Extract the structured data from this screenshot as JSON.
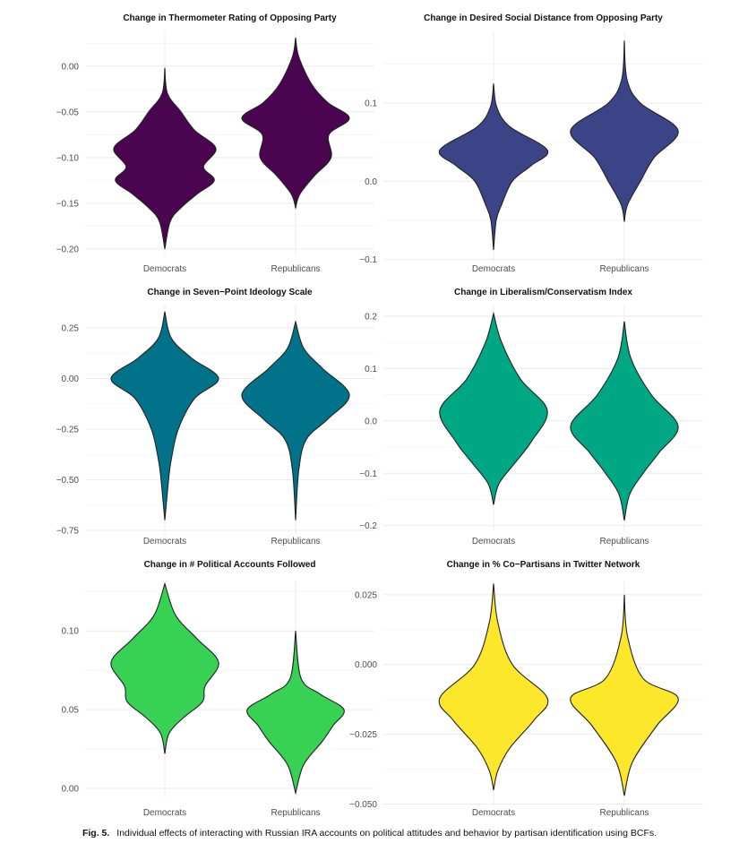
{
  "chart_data": [
    {
      "type": "violin",
      "title": "Change in Thermometer Rating of Opposing Party",
      "categories": [
        "Democrats",
        "Republicans"
      ],
      "yticks": [
        "0.00",
        "-0.05",
        "-0.10",
        "-0.15",
        "-0.20"
      ],
      "ytick_values": [
        0,
        -0.05,
        -0.1,
        -0.15,
        -0.2
      ],
      "ylim": [
        -0.207,
        0.038
      ],
      "color": "#4a0450",
      "series": [
        {
          "name": "Democrats",
          "density": [
            [
              -0.002,
              0
            ],
            [
              -0.03,
              0.05
            ],
            [
              -0.05,
              0.3
            ],
            [
              -0.07,
              0.55
            ],
            [
              -0.09,
              0.95
            ],
            [
              -0.11,
              0.72
            ],
            [
              -0.125,
              0.92
            ],
            [
              -0.14,
              0.6
            ],
            [
              -0.155,
              0.3
            ],
            [
              -0.17,
              0.1
            ],
            [
              -0.2,
              0
            ]
          ]
        },
        {
          "name": "Republicans",
          "density": [
            [
              0.031,
              0
            ],
            [
              0.01,
              0.06
            ],
            [
              -0.02,
              0.3
            ],
            [
              -0.04,
              0.6
            ],
            [
              -0.057,
              1.0
            ],
            [
              -0.075,
              0.62
            ],
            [
              -0.1,
              0.66
            ],
            [
              -0.12,
              0.35
            ],
            [
              -0.14,
              0.08
            ],
            [
              -0.155,
              0
            ]
          ]
        }
      ]
    },
    {
      "type": "violin",
      "title": "Change in Desired Social Distance from Opposing Party",
      "categories": [
        "Democrats",
        "Republicans"
      ],
      "yticks": [
        "0.1",
        "0.0",
        "-0.1"
      ],
      "ytick_values": [
        0.1,
        0,
        -0.1
      ],
      "ylim": [
        -0.103,
        0.192
      ],
      "color": "#3c4488",
      "series": [
        {
          "name": "Democrats",
          "density": [
            [
              0.125,
              0
            ],
            [
              0.095,
              0.06
            ],
            [
              0.07,
              0.3
            ],
            [
              0.04,
              1.0
            ],
            [
              0.02,
              0.7
            ],
            [
              0.0,
              0.35
            ],
            [
              -0.03,
              0.15
            ],
            [
              -0.05,
              0.05
            ],
            [
              -0.088,
              0
            ]
          ]
        },
        {
          "name": "Republicans",
          "density": [
            [
              0.18,
              0
            ],
            [
              0.13,
              0.05
            ],
            [
              0.1,
              0.3
            ],
            [
              0.065,
              1.0
            ],
            [
              0.03,
              0.55
            ],
            [
              0.0,
              0.3
            ],
            [
              -0.03,
              0.06
            ],
            [
              -0.052,
              0
            ]
          ]
        }
      ]
    },
    {
      "type": "violin",
      "title": "Change in Seven−Point Ideology Scale",
      "categories": [
        "Democrats",
        "Republicans"
      ],
      "yticks": [
        "0.25",
        "0.00",
        "-0.25",
        "-0.50",
        "-0.75"
      ],
      "ytick_values": [
        0.25,
        0,
        -0.25,
        -0.5,
        -0.75
      ],
      "ylim": [
        -0.772,
        0.365
      ],
      "color": "#00738a",
      "series": [
        {
          "name": "Democrats",
          "density": [
            [
              0.33,
              0
            ],
            [
              0.2,
              0.12
            ],
            [
              0.1,
              0.5
            ],
            [
              0.0,
              1.0
            ],
            [
              -0.1,
              0.55
            ],
            [
              -0.25,
              0.25
            ],
            [
              -0.4,
              0.12
            ],
            [
              -0.5,
              0.07
            ],
            [
              -0.7,
              0
            ]
          ]
        },
        {
          "name": "Republicans",
          "density": [
            [
              0.28,
              0
            ],
            [
              0.15,
              0.15
            ],
            [
              0.05,
              0.5
            ],
            [
              -0.08,
              1.0
            ],
            [
              -0.2,
              0.6
            ],
            [
              -0.3,
              0.2
            ],
            [
              -0.45,
              0.06
            ],
            [
              -0.7,
              0
            ]
          ]
        }
      ]
    },
    {
      "type": "violin",
      "title": "Change in Liberalism/Conservatism Index",
      "categories": [
        "Democrats",
        "Republicans"
      ],
      "yticks": [
        "0.2",
        "0.1",
        "0.0",
        "-0.1",
        "-0.2"
      ],
      "ytick_values": [
        0.2,
        0.1,
        0,
        -0.1,
        -0.2
      ],
      "ylim": [
        -0.209,
        0.222
      ],
      "color": "#00a784",
      "series": [
        {
          "name": "Democrats",
          "density": [
            [
              0.205,
              0
            ],
            [
              0.15,
              0.15
            ],
            [
              0.08,
              0.5
            ],
            [
              0.02,
              1.0
            ],
            [
              -0.04,
              0.7
            ],
            [
              -0.08,
              0.4
            ],
            [
              -0.12,
              0.1
            ],
            [
              -0.16,
              0
            ]
          ]
        },
        {
          "name": "Republicans",
          "density": [
            [
              0.19,
              0
            ],
            [
              0.12,
              0.12
            ],
            [
              0.05,
              0.5
            ],
            [
              -0.01,
              1.0
            ],
            [
              -0.06,
              0.65
            ],
            [
              -0.1,
              0.35
            ],
            [
              -0.14,
              0.1
            ],
            [
              -0.19,
              0
            ]
          ]
        }
      ]
    },
    {
      "type": "violin",
      "title": "Change in # Political Accounts Followed",
      "categories": [
        "Democrats",
        "Republicans"
      ],
      "yticks": [
        "0.10",
        "0.05",
        "0.00"
      ],
      "ytick_values": [
        0.1,
        0.05,
        0
      ],
      "ylim": [
        -0.0057,
        0.132
      ],
      "color": "#37d154",
      "series": [
        {
          "name": "Democrats",
          "density": [
            [
              0.13,
              0
            ],
            [
              0.11,
              0.2
            ],
            [
              0.095,
              0.6
            ],
            [
              0.08,
              1.0
            ],
            [
              0.065,
              0.75
            ],
            [
              0.055,
              0.7
            ],
            [
              0.045,
              0.35
            ],
            [
              0.035,
              0.08
            ],
            [
              0.022,
              0
            ]
          ]
        },
        {
          "name": "Republicans",
          "density": [
            [
              0.1,
              0
            ],
            [
              0.07,
              0.1
            ],
            [
              0.06,
              0.45
            ],
            [
              0.05,
              0.9
            ],
            [
              0.04,
              0.7
            ],
            [
              0.03,
              0.5
            ],
            [
              0.015,
              0.15
            ],
            [
              -0.003,
              0
            ]
          ]
        }
      ]
    },
    {
      "type": "violin",
      "title": "Change in % Co−Partisans in Twitter Network",
      "categories": [
        "Democrats",
        "Republicans"
      ],
      "yticks": [
        "0.025",
        "0.000",
        "-0.025",
        "-0.050"
      ],
      "ytick_values": [
        0.025,
        0,
        -0.025,
        -0.05
      ],
      "ylim": [
        -0.0505,
        0.0301
      ],
      "color": "#fde72b",
      "series": [
        {
          "name": "Democrats",
          "density": [
            [
              0.029,
              0
            ],
            [
              0.015,
              0.08
            ],
            [
              0.0,
              0.35
            ],
            [
              -0.012,
              1.0
            ],
            [
              -0.02,
              0.75
            ],
            [
              -0.03,
              0.3
            ],
            [
              -0.038,
              0.08
            ],
            [
              -0.045,
              0
            ]
          ]
        },
        {
          "name": "Republicans",
          "density": [
            [
              0.025,
              0
            ],
            [
              0.01,
              0.06
            ],
            [
              -0.005,
              0.35
            ],
            [
              -0.012,
              1.0
            ],
            [
              -0.022,
              0.6
            ],
            [
              -0.035,
              0.15
            ],
            [
              -0.047,
              0
            ]
          ]
        }
      ]
    }
  ],
  "caption": {
    "label": "Fig. 5.",
    "text": "Individual effects of interacting with Russian IRA accounts on political attitudes and behavior by partisan identification using BCFs."
  }
}
